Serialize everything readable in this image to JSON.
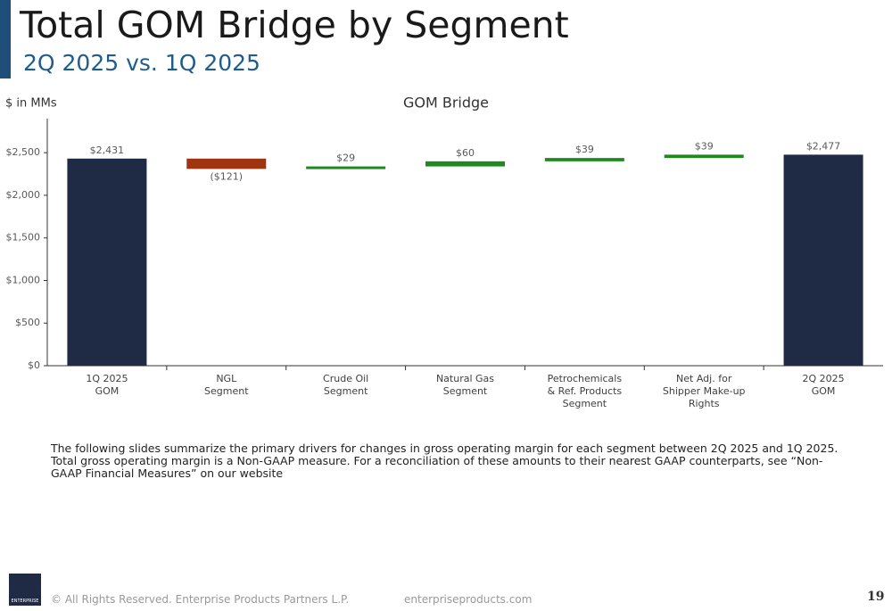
{
  "slide": {
    "title": "Total GOM Bridge by Segment",
    "subtitle": "2Q 2025 vs. 1Q 2025",
    "note": "The following slides summarize the primary drivers for changes in gross operating margin for each segment between 2Q 2025 and 1Q 2025. Total gross operating margin is a Non-GAAP measure. For a reconciliation of these amounts to their nearest GAAP counterparts, see “Non-GAAP Financial Measures” on our website",
    "footer": "© All Rights Reserved. Enterprise Products Partners L.P.",
    "website": "enterpriseproducts.com",
    "page": "19",
    "logo": "ENTERPRISE"
  },
  "chart_data": {
    "type": "waterfall",
    "title": "GOM Bridge",
    "y_label": "$ in MMs",
    "categories": [
      "1Q 2025\nGOM",
      "NGL\nSegment",
      "Crude Oil\nSegment",
      "Natural Gas\nSegment",
      "Petrochemicals\n& Ref. Products\nSegment",
      "Net Adj. for\nShipper Make-up\nRights",
      "2Q 2025\nGOM"
    ],
    "values": [
      2431,
      -121,
      29,
      60,
      39,
      39,
      2477
    ],
    "value_labels": [
      "$2,431",
      "($121)",
      "$29",
      "$60",
      "$39",
      "$39",
      "$2,477"
    ],
    "totals": [
      true,
      false,
      false,
      false,
      false,
      false,
      true
    ],
    "colors": [
      "#1f2a44",
      "#9e3510",
      "#1e8a1e",
      "#1e8a1e",
      "#1e8a1e",
      "#1e8a1e",
      "#1f2a44"
    ],
    "ylim": [
      0,
      2900
    ],
    "yticks": [
      {
        "value": 0,
        "label": "$0"
      },
      {
        "value": 500,
        "label": "$500"
      },
      {
        "value": 1000,
        "label": "$1,000"
      },
      {
        "value": 1500,
        "label": "$1,500"
      },
      {
        "value": 2000,
        "label": "$2,000"
      },
      {
        "value": 2500,
        "label": "$2,500"
      }
    ]
  }
}
